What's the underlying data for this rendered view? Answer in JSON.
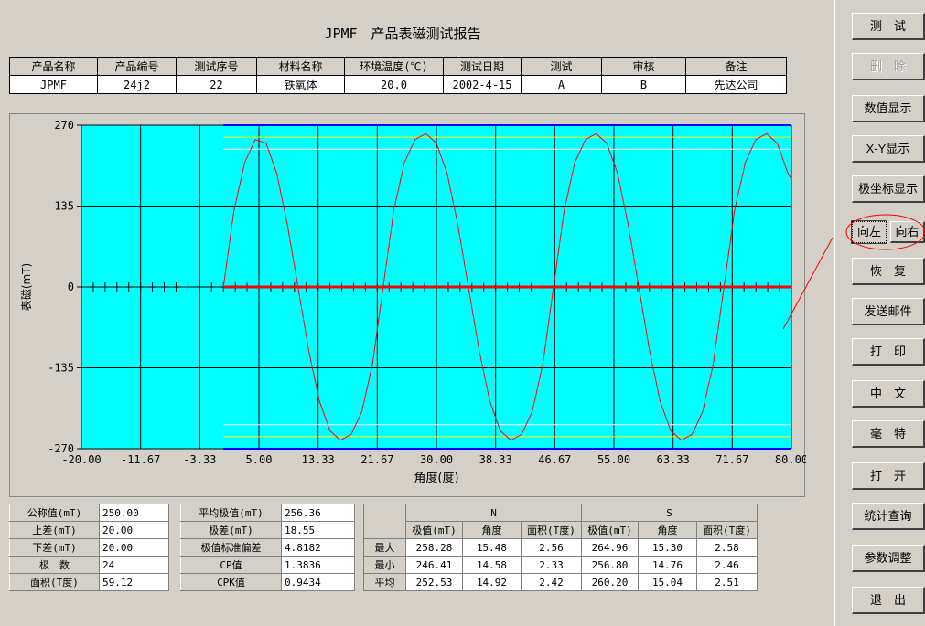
{
  "report": {
    "title": "JPMF　产品表磁测试报告",
    "headers": [
      "产品名称",
      "产品编号",
      "测试序号",
      "材料名称",
      "环境温度(℃)",
      "测试日期",
      "测试",
      "审核",
      "备注"
    ],
    "values": [
      "JPMF",
      "24j2",
      "22",
      "铁氧体",
      "20.0",
      "2002-4-15",
      "A",
      "B",
      "先达公司"
    ]
  },
  "chart_data": {
    "type": "line",
    "title": "",
    "xlabel": "角度(度)",
    "ylabel": "表磁(mT)",
    "xlim": [
      -20,
      80
    ],
    "ylim": [
      -270,
      270
    ],
    "x_ticks": [
      "-20.00",
      "-11.67",
      "-3.33",
      "5.00",
      "13.33",
      "21.67",
      "30.00",
      "38.33",
      "46.67",
      "55.00",
      "63.33",
      "71.67",
      "80.00"
    ],
    "y_ticks": [
      "270",
      "135",
      "0",
      "-135",
      "-270"
    ],
    "plot_bg": "#00ffff",
    "series": [
      {
        "color": "#ff0000",
        "x": [
          0,
          1.5,
          3,
          4.5,
          6,
          7.5,
          9,
          10.5,
          12,
          13.5,
          15,
          16.5,
          18,
          19.5,
          21,
          22.5,
          24,
          25.5,
          27,
          28.5,
          30,
          31.5,
          33,
          34.5,
          36,
          37.5,
          39,
          40.5,
          42,
          43.5,
          45,
          46.5,
          48,
          49.5,
          51,
          52.5,
          54,
          55.5,
          57,
          58.5,
          60,
          61.5,
          63,
          64.5,
          66,
          67.5,
          69,
          70.5,
          72,
          73.5,
          75,
          76.5,
          78,
          79.5,
          80
        ],
        "y": [
          0,
          128,
          208,
          246,
          240,
          190,
          105,
          0,
          -105,
          -190,
          -240,
          -256,
          -246,
          -208,
          -128,
          0,
          128,
          208,
          246,
          256,
          240,
          190,
          105,
          0,
          -105,
          -190,
          -240,
          -256,
          -246,
          -208,
          -128,
          0,
          128,
          208,
          246,
          256,
          240,
          190,
          105,
          0,
          -105,
          -190,
          -240,
          -256,
          -246,
          -208,
          -128,
          0,
          128,
          208,
          246,
          256,
          240,
          190,
          180
        ]
      }
    ],
    "upper_limits": [
      250,
      230
    ],
    "lower_limits": [
      -230,
      -250
    ]
  },
  "stats": {
    "left": [
      {
        "label": "公称值(mT)",
        "value": "250.00"
      },
      {
        "label": "上差(mT)",
        "value": "20.00"
      },
      {
        "label": "下差(mT)",
        "value": "20.00"
      },
      {
        "label": "极　数",
        "value": "24"
      },
      {
        "label": "面积(T度)",
        "value": "59.12"
      }
    ],
    "mid": [
      {
        "label": "平均极值(mT)",
        "value": "256.36"
      },
      {
        "label": "极差(mT)",
        "value": "18.55"
      },
      {
        "label": "极值标准偏差",
        "value": "4.8182"
      },
      {
        "label": "CP值",
        "value": "1.3836"
      },
      {
        "label": "CPK值",
        "value": "0.9434"
      }
    ]
  },
  "minmax": {
    "group_n": "N",
    "group_s": "S",
    "col_headers": [
      "极值(mT)",
      "角度",
      "面积(T度)",
      "极值(mT)",
      "角度",
      "面积(T度)"
    ],
    "rows": [
      {
        "label": "最大",
        "values": [
          "258.28",
          "15.48",
          "2.56",
          "264.96",
          "15.30",
          "2.58"
        ]
      },
      {
        "label": "最小",
        "values": [
          "246.41",
          "14.58",
          "2.33",
          "256.80",
          "14.76",
          "2.46"
        ]
      },
      {
        "label": "平均",
        "values": [
          "252.53",
          "14.92",
          "2.42",
          "260.20",
          "15.04",
          "2.51"
        ]
      }
    ]
  },
  "side": {
    "test": "测　试",
    "delete": "删　除",
    "numeric": "数值显示",
    "xy": "X-Y显示",
    "polar": "极坐标显示",
    "left": "向左",
    "right": "向右",
    "restore": "恢　复",
    "mail": "发送邮件",
    "print": "打　印",
    "chinese": "中　文",
    "millitesla": "毫　特",
    "open": "打　开",
    "stats": "统计查询",
    "params": "参数调整",
    "exit": "退　出"
  },
  "colors": {
    "annotation": "#ff0000",
    "grid": "#000000",
    "limit_line": "#ffff00"
  }
}
